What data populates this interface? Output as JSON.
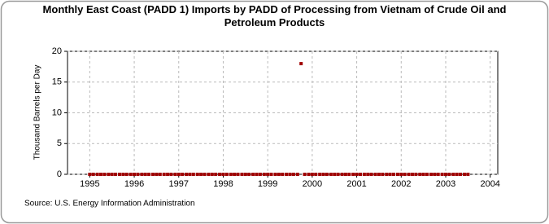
{
  "chart_data": {
    "type": "scatter",
    "title": "Monthly East Coast (PADD 1) Imports by PADD of Processing from Vietnam of Crude Oil and Petroleum Products",
    "y_label": "Thousand Barrels per Day",
    "source": "Source: U.S. Energy Information Administration",
    "color": "#a00000",
    "grid": true,
    "xlim": [
      1994.5,
      2004.17
    ],
    "ylim": [
      0,
      20
    ],
    "xticks": [
      1995,
      1996,
      1997,
      1998,
      1999,
      2000,
      2001,
      2002,
      2003,
      2004
    ],
    "yticks": [
      0,
      5,
      10,
      15,
      20
    ],
    "x": [
      1995,
      1995.08,
      1995.17,
      1995.25,
      1995.33,
      1995.42,
      1995.5,
      1995.58,
      1995.67,
      1995.75,
      1995.83,
      1995.92,
      1996,
      1996.08,
      1996.17,
      1996.25,
      1996.33,
      1996.42,
      1996.5,
      1996.58,
      1996.67,
      1996.75,
      1996.83,
      1996.92,
      1997,
      1997.08,
      1997.17,
      1997.25,
      1997.33,
      1997.42,
      1997.5,
      1997.58,
      1997.67,
      1997.75,
      1997.83,
      1997.92,
      1998,
      1998.08,
      1998.17,
      1998.25,
      1998.33,
      1998.42,
      1998.5,
      1998.58,
      1998.67,
      1998.75,
      1998.83,
      1998.92,
      1999,
      1999.08,
      1999.17,
      1999.25,
      1999.33,
      1999.42,
      1999.5,
      1999.58,
      1999.67,
      1999.75,
      1999.83,
      1999.92,
      2000,
      2000.08,
      2000.17,
      2000.25,
      2000.33,
      2000.42,
      2000.5,
      2000.58,
      2000.67,
      2000.75,
      2000.83,
      2000.92,
      2001,
      2001.08,
      2001.17,
      2001.25,
      2001.33,
      2001.42,
      2001.5,
      2001.58,
      2001.67,
      2001.75,
      2001.83,
      2001.92,
      2002,
      2002.08,
      2002.17,
      2002.25,
      2002.33,
      2002.42,
      2002.5,
      2002.58,
      2002.67,
      2002.75,
      2002.83,
      2002.92,
      2003,
      2003.08,
      2003.17,
      2003.25,
      2003.33,
      2003.42,
      2003.5
    ],
    "values": [
      0,
      0,
      0,
      0,
      0,
      0,
      0,
      0,
      0,
      0,
      0,
      0,
      0,
      0,
      0,
      0,
      0,
      0,
      0,
      0,
      0,
      0,
      0,
      0,
      0,
      0,
      0,
      0,
      0,
      0,
      0,
      0,
      0,
      0,
      0,
      0,
      0,
      0,
      0,
      0,
      0,
      0,
      0,
      0,
      0,
      0,
      0,
      0,
      0,
      0,
      0,
      0,
      0,
      0,
      0,
      0,
      0,
      18,
      0,
      0,
      0,
      0,
      0,
      0,
      0,
      0,
      0,
      0,
      0,
      0,
      0,
      0,
      0,
      0,
      0,
      0,
      0,
      0,
      0,
      0,
      0,
      0,
      0,
      0,
      0,
      0,
      0,
      0,
      0,
      0,
      0,
      0,
      0,
      0,
      0,
      0,
      0,
      0,
      0,
      0,
      0,
      0,
      0
    ]
  }
}
